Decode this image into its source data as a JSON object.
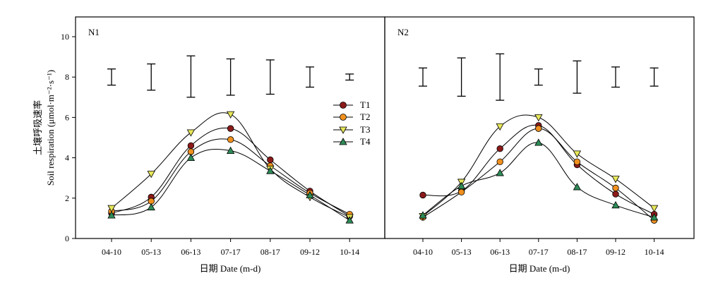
{
  "y_axis": {
    "label_cn": "土壤呼吸速率",
    "label_en": "Soil respiration (μmol·m⁻²·s⁻¹)",
    "ticks": [
      "0",
      "2",
      "4",
      "6",
      "8",
      "10"
    ]
  },
  "x_axis": {
    "label": "日期 Date (m-d)"
  },
  "legend": {
    "items": [
      {
        "name": "T1",
        "marker": "circle",
        "fill": "#8b1a1a"
      },
      {
        "name": "T2",
        "marker": "circle",
        "fill": "#f0901e"
      },
      {
        "name": "T3",
        "marker": "triangle-down",
        "fill": "#e6e65a"
      },
      {
        "name": "T4",
        "marker": "triangle-up",
        "fill": "#2e8b57"
      }
    ]
  },
  "chart_data": [
    {
      "type": "line",
      "title": "N1",
      "categories": [
        "04-10",
        "05-13",
        "06-13",
        "07-17",
        "08-17",
        "09-12",
        "10-14"
      ],
      "ylim": [
        0,
        11
      ],
      "grid": false,
      "legend_position": "right",
      "series": [
        {
          "name": "T1",
          "values": [
            1.25,
            2.05,
            4.6,
            5.45,
            3.9,
            2.35,
            1.1
          ]
        },
        {
          "name": "T2",
          "values": [
            1.35,
            1.85,
            4.3,
            4.9,
            3.6,
            2.25,
            1.2
          ]
        },
        {
          "name": "T3",
          "values": [
            1.5,
            3.2,
            5.25,
            6.15,
            3.45,
            2.05,
            1.05
          ]
        },
        {
          "name": "T4",
          "values": [
            1.15,
            1.55,
            4.0,
            4.35,
            3.35,
            2.15,
            0.9
          ]
        }
      ],
      "error_bars": [
        {
          "center": 8.0,
          "low": 7.6,
          "high": 8.4
        },
        {
          "center": 8.0,
          "low": 7.35,
          "high": 8.65
        },
        {
          "center": 8.0,
          "low": 7.0,
          "high": 9.05
        },
        {
          "center": 8.0,
          "low": 7.1,
          "high": 8.9
        },
        {
          "center": 8.0,
          "low": 7.15,
          "high": 8.85
        },
        {
          "center": 8.0,
          "low": 7.5,
          "high": 8.5
        },
        {
          "center": 8.0,
          "low": 7.85,
          "high": 8.15
        }
      ]
    },
    {
      "type": "line",
      "title": "N2",
      "categories": [
        "04-10",
        "05-13",
        "06-13",
        "07-17",
        "08-17",
        "09-12",
        "10-14"
      ],
      "ylim": [
        0,
        11
      ],
      "grid": false,
      "series": [
        {
          "name": "T1",
          "values": [
            2.15,
            2.35,
            4.45,
            5.6,
            3.65,
            2.2,
            1.2
          ]
        },
        {
          "name": "T2",
          "values": [
            1.05,
            2.3,
            3.8,
            5.45,
            3.8,
            2.5,
            0.9
          ]
        },
        {
          "name": "T3",
          "values": [
            1.1,
            2.8,
            5.55,
            6.0,
            4.2,
            2.95,
            1.5
          ]
        },
        {
          "name": "T4",
          "values": [
            1.15,
            2.6,
            3.25,
            4.75,
            2.55,
            1.65,
            1.05
          ]
        }
      ],
      "error_bars": [
        {
          "center": 8.0,
          "low": 7.55,
          "high": 8.45
        },
        {
          "center": 8.0,
          "low": 7.05,
          "high": 8.95
        },
        {
          "center": 8.0,
          "low": 6.85,
          "high": 9.15
        },
        {
          "center": 8.0,
          "low": 7.6,
          "high": 8.4
        },
        {
          "center": 8.0,
          "low": 7.2,
          "high": 8.8
        },
        {
          "center": 8.0,
          "low": 7.5,
          "high": 8.5
        },
        {
          "center": 8.0,
          "low": 7.55,
          "high": 8.45
        }
      ]
    }
  ]
}
